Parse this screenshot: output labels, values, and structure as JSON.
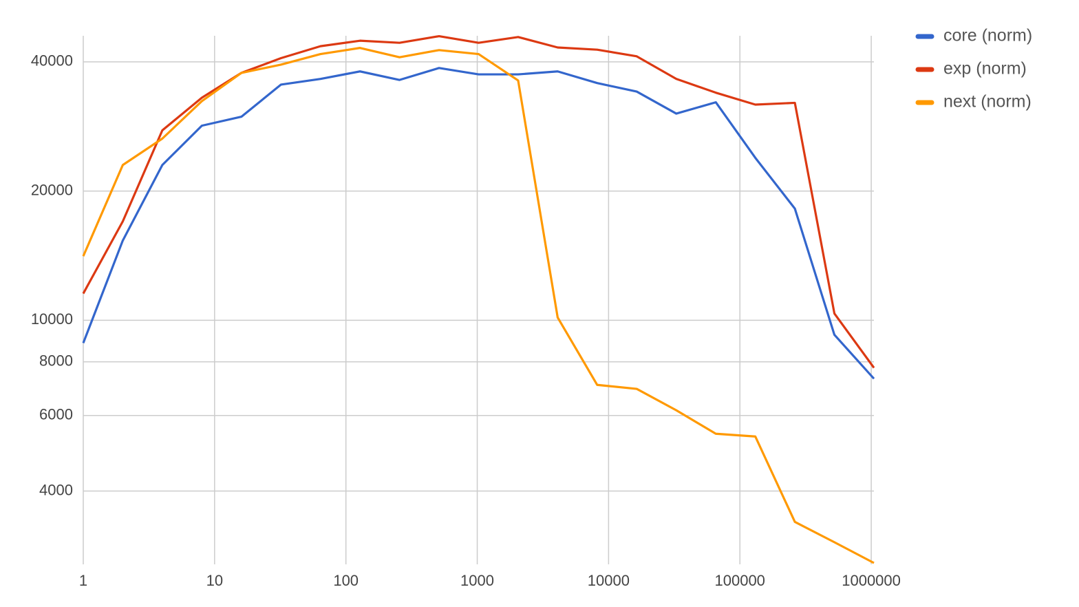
{
  "chart_data": {
    "type": "line",
    "x": [
      1,
      2,
      4,
      8,
      16,
      32,
      64,
      128,
      256,
      512,
      1024,
      2048,
      4096,
      8192,
      16384,
      32768,
      65536,
      131072,
      262144,
      524288,
      1048576
    ],
    "series": [
      {
        "name": "core (norm)",
        "color": "#3366cc",
        "values": [
          8850,
          15340,
          23000,
          28400,
          29800,
          35400,
          36500,
          38000,
          36300,
          38700,
          37400,
          37400,
          38000,
          35700,
          34100,
          30300,
          32200,
          23900,
          18200,
          9250,
          7310
        ]
      },
      {
        "name": "exp (norm)",
        "color": "#dc3912",
        "values": [
          11540,
          17000,
          27700,
          33000,
          37700,
          40800,
          43500,
          44800,
          44300,
          45900,
          44300,
          45700,
          43200,
          42700,
          41200,
          36500,
          33900,
          31800,
          32100,
          10370,
          7750
        ]
      },
      {
        "name": "next (norm)",
        "color": "#ff9900",
        "values": [
          14100,
          23000,
          26500,
          32400,
          37700,
          39400,
          41700,
          43100,
          41000,
          42600,
          41700,
          36200,
          10150,
          7070,
          6920,
          6170,
          5440,
          5360,
          3390,
          3040,
          2720
        ]
      }
    ],
    "xscale": "log",
    "yscale": "log",
    "xlim": [
      1,
      1048576
    ],
    "ylim": [
      2700,
      46000
    ],
    "xticks": [
      1,
      10,
      100,
      1000,
      10000,
      100000,
      1000000
    ],
    "yticks": [
      4000,
      6000,
      8000,
      10000,
      20000,
      40000
    ],
    "grid": true,
    "legend": "right"
  }
}
